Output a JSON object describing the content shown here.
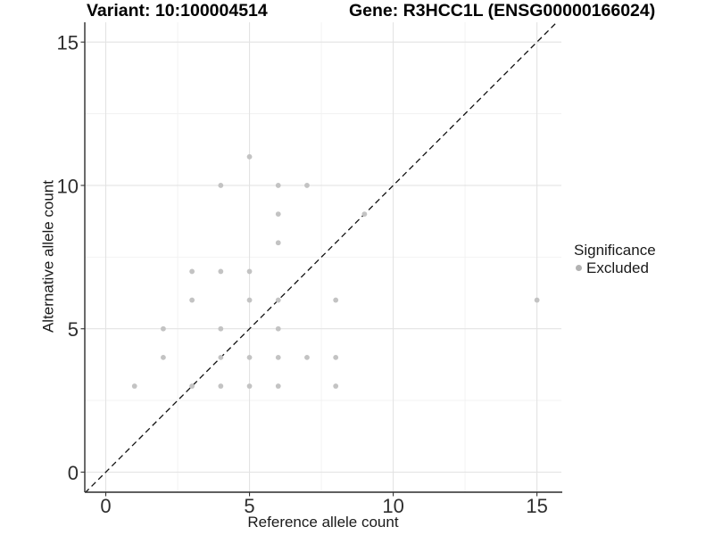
{
  "header": {
    "variant_title": "Variant: 10:100004514",
    "gene_title": "Gene: R3HCC1L (ENSG00000166024)"
  },
  "chart_data": {
    "type": "scatter",
    "xlabel": "Reference allele count",
    "ylabel": "Alternative allele count",
    "x_ticks": [
      0,
      5,
      10,
      15
    ],
    "y_ticks": [
      0,
      5,
      10,
      15
    ],
    "x_minor_gridlines": [
      2.5,
      7.5,
      12.5
    ],
    "y_minor_gridlines": [
      2.5,
      7.5,
      12.5
    ],
    "xlim": [
      -0.73,
      15.85
    ],
    "ylim": [
      -0.7,
      15.69
    ],
    "grid": "major+minor",
    "reference_line": {
      "type": "identity y=x",
      "style": "dashed",
      "color": "#111111"
    },
    "series": [
      {
        "name": "Excluded",
        "marker": "circle",
        "color": "#c3c3c3",
        "points": [
          [
            1,
            3
          ],
          [
            2,
            4
          ],
          [
            2,
            5
          ],
          [
            3,
            3
          ],
          [
            3,
            6
          ],
          [
            3,
            7
          ],
          [
            4,
            3
          ],
          [
            4,
            4
          ],
          [
            4,
            5
          ],
          [
            4,
            7
          ],
          [
            4,
            10
          ],
          [
            5,
            3
          ],
          [
            5,
            4
          ],
          [
            5,
            6
          ],
          [
            5,
            7
          ],
          [
            5,
            11
          ],
          [
            6,
            3
          ],
          [
            6,
            4
          ],
          [
            6,
            5
          ],
          [
            6,
            6
          ],
          [
            6,
            8
          ],
          [
            6,
            9
          ],
          [
            6,
            10
          ],
          [
            7,
            4
          ],
          [
            7,
            10
          ],
          [
            8,
            3
          ],
          [
            8,
            4
          ],
          [
            8,
            6
          ],
          [
            9,
            9
          ],
          [
            15,
            6
          ]
        ]
      }
    ],
    "legend": {
      "title": "Significance",
      "position": "right",
      "items": [
        {
          "label": "Excluded",
          "color": "#b2b2b2",
          "marker": "circle"
        }
      ]
    },
    "colors": {
      "background": "#ffffff",
      "gridline_major": "#e3e3e3",
      "gridline_minor": "#f1f1f1",
      "axis_line": "#2b2b2b",
      "tick_mark": "#333333",
      "tick_text": "#2e2e2e"
    }
  }
}
